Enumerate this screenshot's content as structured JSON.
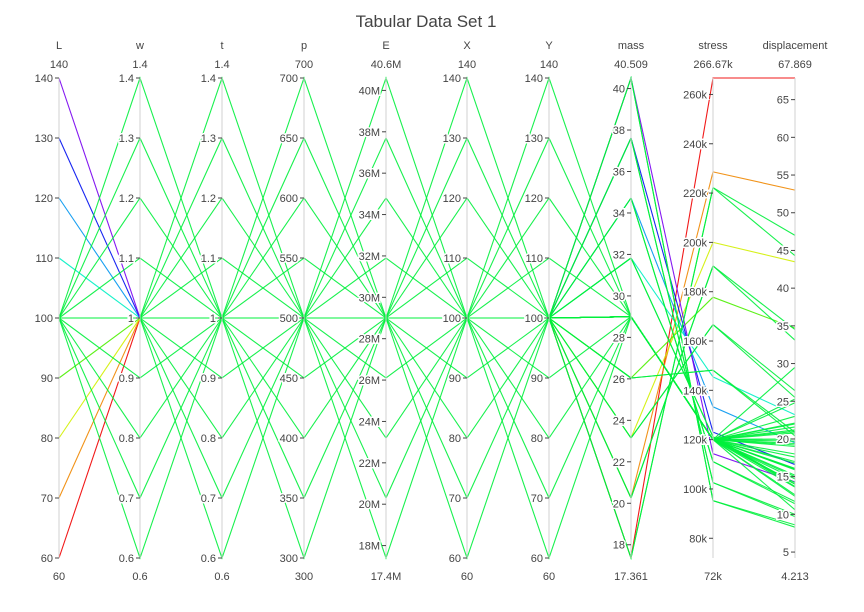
{
  "chart_data": {
    "type": "parallel_coordinates",
    "title": "Tabular Data Set 1",
    "colorscale": "rainbow",
    "colors": {
      "axis_line": "#d0d0d0",
      "text": "#444444",
      "background": "#ffffff"
    },
    "color_encoding": "L",
    "color_range": [
      60,
      140
    ],
    "axes": [
      {
        "id": "L",
        "label": "L",
        "top_label": "140",
        "bottom_label": "60",
        "range": [
          60,
          140
        ],
        "ticks": [
          60,
          70,
          80,
          90,
          100,
          110,
          120,
          130,
          140
        ],
        "tick_labels": [
          "60",
          "70",
          "80",
          "90",
          "100",
          "110",
          "120",
          "130",
          "140"
        ]
      },
      {
        "id": "w",
        "label": "w",
        "top_label": "1.4",
        "bottom_label": "0.6",
        "range": [
          0.6,
          1.4
        ],
        "ticks": [
          0.6,
          0.7,
          0.8,
          0.9,
          1.0,
          1.1,
          1.2,
          1.3,
          1.4
        ],
        "tick_labels": [
          "0.6",
          "0.7",
          "0.8",
          "0.9",
          "1",
          "1.1",
          "1.2",
          "1.3",
          "1.4"
        ]
      },
      {
        "id": "t",
        "label": "t",
        "top_label": "1.4",
        "bottom_label": "0.6",
        "range": [
          0.6,
          1.4
        ],
        "ticks": [
          0.6,
          0.7,
          0.8,
          0.9,
          1.0,
          1.1,
          1.2,
          1.3,
          1.4
        ],
        "tick_labels": [
          "0.6",
          "0.7",
          "0.8",
          "0.9",
          "1",
          "1.1",
          "1.2",
          "1.3",
          "1.4"
        ]
      },
      {
        "id": "p",
        "label": "p",
        "top_label": "700",
        "bottom_label": "300",
        "range": [
          300,
          700
        ],
        "ticks": [
          300,
          350,
          400,
          450,
          500,
          550,
          600,
          650,
          700
        ],
        "tick_labels": [
          "300",
          "350",
          "400",
          "450",
          "500",
          "550",
          "600",
          "650",
          "700"
        ]
      },
      {
        "id": "E",
        "label": "E",
        "top_label": "40.6M",
        "bottom_label": "17.4M",
        "range": [
          17.4,
          40.6
        ],
        "ticks": [
          18,
          20,
          22,
          24,
          26,
          28,
          30,
          32,
          34,
          36,
          38,
          40
        ],
        "tick_labels": [
          "18M",
          "20M",
          "22M",
          "24M",
          "26M",
          "28M",
          "30M",
          "32M",
          "34M",
          "36M",
          "38M",
          "40M"
        ]
      },
      {
        "id": "X",
        "label": "X",
        "top_label": "140",
        "bottom_label": "60",
        "range": [
          60,
          140
        ],
        "ticks": [
          60,
          70,
          80,
          90,
          100,
          110,
          120,
          130,
          140
        ],
        "tick_labels": [
          "60",
          "70",
          "80",
          "90",
          "100",
          "110",
          "120",
          "130",
          "140"
        ]
      },
      {
        "id": "Y",
        "label": "Y",
        "top_label": "140",
        "bottom_label": "60",
        "range": [
          60,
          140
        ],
        "ticks": [
          60,
          70,
          80,
          90,
          100,
          110,
          120,
          130,
          140
        ],
        "tick_labels": [
          "60",
          "70",
          "80",
          "90",
          "100",
          "110",
          "120",
          "130",
          "140"
        ]
      },
      {
        "id": "mass",
        "label": "mass",
        "top_label": "40.509",
        "bottom_label": "17.361",
        "range": [
          17.361,
          40.509
        ],
        "ticks": [
          18,
          20,
          22,
          24,
          26,
          28,
          30,
          32,
          34,
          36,
          38,
          40
        ],
        "tick_labels": [
          "18",
          "20",
          "22",
          "24",
          "26",
          "28",
          "30",
          "32",
          "34",
          "36",
          "38",
          "40"
        ]
      },
      {
        "id": "stress",
        "label": "stress",
        "top_label": "266.67k",
        "bottom_label": "72k",
        "range": [
          72,
          266.67
        ],
        "ticks": [
          80,
          100,
          120,
          140,
          160,
          180,
          200,
          220,
          240,
          260
        ],
        "tick_labels": [
          "80k",
          "100k",
          "120k",
          "140k",
          "160k",
          "180k",
          "200k",
          "220k",
          "240k",
          "260k"
        ]
      },
      {
        "id": "displacement",
        "label": "displacement",
        "top_label": "67.869",
        "bottom_label": "4.213",
        "range": [
          4.213,
          67.869
        ],
        "ticks": [
          5,
          10,
          15,
          20,
          25,
          30,
          35,
          40,
          45,
          50,
          55,
          60,
          65
        ],
        "tick_labels": [
          "5",
          "10",
          "15",
          "20",
          "25",
          "30",
          "35",
          "40",
          "45",
          "50",
          "55",
          "60",
          "65"
        ]
      }
    ],
    "lines": [
      {
        "L": 60,
        "w": 1.0,
        "t": 1.0,
        "p": 500,
        "E": 29,
        "X": 100,
        "Y": 100,
        "mass": 17.361,
        "stress": 266.67,
        "displacement": 67.869
      },
      {
        "L": 70,
        "w": 1.0,
        "t": 1.0,
        "p": 500,
        "E": 29,
        "X": 100,
        "Y": 100,
        "mass": 20.255,
        "stress": 228.57,
        "displacement": 53.0
      },
      {
        "L": 80,
        "w": 1.0,
        "t": 1.0,
        "p": 500,
        "E": 29,
        "X": 100,
        "Y": 100,
        "mass": 23.148,
        "stress": 200.0,
        "displacement": 43.5
      },
      {
        "L": 90,
        "w": 1.0,
        "t": 1.0,
        "p": 500,
        "E": 29,
        "X": 100,
        "Y": 100,
        "mass": 26.042,
        "stress": 177.78,
        "displacement": 34.7
      },
      {
        "L": 110,
        "w": 1.0,
        "t": 1.0,
        "p": 500,
        "E": 29,
        "X": 100,
        "Y": 100,
        "mass": 31.829,
        "stress": 145.45,
        "displacement": 23.2
      },
      {
        "L": 120,
        "w": 1.0,
        "t": 1.0,
        "p": 500,
        "E": 29,
        "X": 100,
        "Y": 100,
        "mass": 34.722,
        "stress": 133.33,
        "displacement": 19.5
      },
      {
        "L": 130,
        "w": 1.0,
        "t": 1.0,
        "p": 500,
        "E": 29,
        "X": 100,
        "Y": 100,
        "mass": 37.616,
        "stress": 123.08,
        "displacement": 16.6
      },
      {
        "L": 140,
        "w": 1.0,
        "t": 1.0,
        "p": 500,
        "E": 29,
        "X": 100,
        "Y": 100,
        "mass": 40.509,
        "stress": 114.29,
        "displacement": 14.3
      },
      {
        "L": 100,
        "w": 0.6,
        "t": 1.0,
        "p": 500,
        "E": 29,
        "X": 100,
        "Y": 100,
        "mass": 17.361,
        "stress": 222.22,
        "displacement": 47.0
      },
      {
        "L": 100,
        "w": 0.7,
        "t": 1.0,
        "p": 500,
        "E": 29,
        "X": 100,
        "Y": 100,
        "mass": 20.255,
        "stress": 190.48,
        "displacement": 34.5
      },
      {
        "L": 100,
        "w": 0.8,
        "t": 1.0,
        "p": 500,
        "E": 29,
        "X": 100,
        "Y": 100,
        "mass": 23.148,
        "stress": 166.67,
        "displacement": 26.4
      },
      {
        "L": 100,
        "w": 0.9,
        "t": 1.0,
        "p": 500,
        "E": 29,
        "X": 100,
        "Y": 100,
        "mass": 26.042,
        "stress": 148.15,
        "displacement": 20.9
      },
      {
        "L": 100,
        "w": 1.1,
        "t": 1.0,
        "p": 500,
        "E": 29,
        "X": 100,
        "Y": 100,
        "mass": 31.829,
        "stress": 121.21,
        "displacement": 14.0
      },
      {
        "L": 100,
        "w": 1.2,
        "t": 1.0,
        "p": 500,
        "E": 29,
        "X": 100,
        "Y": 100,
        "mass": 34.722,
        "stress": 111.11,
        "displacement": 11.7
      },
      {
        "L": 100,
        "w": 1.3,
        "t": 1.0,
        "p": 500,
        "E": 29,
        "X": 100,
        "Y": 100,
        "mass": 37.616,
        "stress": 102.56,
        "displacement": 10.0
      },
      {
        "L": 100,
        "w": 1.4,
        "t": 1.0,
        "p": 500,
        "E": 29,
        "X": 100,
        "Y": 100,
        "mass": 40.509,
        "stress": 95.24,
        "displacement": 8.6
      },
      {
        "L": 100,
        "w": 1.0,
        "t": 0.6,
        "p": 500,
        "E": 29,
        "X": 100,
        "Y": 100,
        "mass": 17.361,
        "stress": 222.22,
        "displacement": 44.3
      },
      {
        "L": 100,
        "w": 1.0,
        "t": 0.7,
        "p": 500,
        "E": 29,
        "X": 100,
        "Y": 100,
        "mass": 20.255,
        "stress": 190.48,
        "displacement": 33.1
      },
      {
        "L": 100,
        "w": 1.0,
        "t": 0.8,
        "p": 500,
        "E": 29,
        "X": 100,
        "Y": 100,
        "mass": 23.148,
        "stress": 166.67,
        "displacement": 25.5
      },
      {
        "L": 100,
        "w": 1.0,
        "t": 0.9,
        "p": 500,
        "E": 29,
        "X": 100,
        "Y": 100,
        "mass": 26.042,
        "stress": 148.15,
        "displacement": 20.4
      },
      {
        "L": 100,
        "w": 1.0,
        "t": 1.1,
        "p": 500,
        "E": 29,
        "X": 100,
        "Y": 100,
        "mass": 31.829,
        "stress": 121.21,
        "displacement": 13.7
      },
      {
        "L": 100,
        "w": 1.0,
        "t": 1.2,
        "p": 500,
        "E": 29,
        "X": 100,
        "Y": 100,
        "mass": 34.722,
        "stress": 111.11,
        "displacement": 11.4
      },
      {
        "L": 100,
        "w": 1.0,
        "t": 1.3,
        "p": 500,
        "E": 29,
        "X": 100,
        "Y": 100,
        "mass": 37.616,
        "stress": 102.56,
        "displacement": 9.7
      },
      {
        "L": 100,
        "w": 1.0,
        "t": 1.4,
        "p": 500,
        "E": 29,
        "X": 100,
        "Y": 100,
        "mass": 40.509,
        "stress": 95.24,
        "displacement": 8.3
      },
      {
        "L": 100,
        "w": 1.0,
        "t": 1.0,
        "p": 300,
        "E": 29,
        "X": 100,
        "Y": 100,
        "mass": 29.0,
        "stress": 120.0,
        "displacement": 10.6
      },
      {
        "L": 100,
        "w": 1.0,
        "t": 1.0,
        "p": 350,
        "E": 29,
        "X": 100,
        "Y": 100,
        "mass": 29.0,
        "stress": 120.0,
        "displacement": 12.4
      },
      {
        "L": 100,
        "w": 1.0,
        "t": 1.0,
        "p": 400,
        "E": 29,
        "X": 100,
        "Y": 100,
        "mass": 29.0,
        "stress": 120.0,
        "displacement": 14.2
      },
      {
        "L": 100,
        "w": 1.0,
        "t": 1.0,
        "p": 450,
        "E": 29,
        "X": 100,
        "Y": 100,
        "mass": 29.0,
        "stress": 120.0,
        "displacement": 15.9
      },
      {
        "L": 100,
        "w": 1.0,
        "t": 1.0,
        "p": 550,
        "E": 29,
        "X": 100,
        "Y": 100,
        "mass": 29.0,
        "stress": 120.0,
        "displacement": 19.4
      },
      {
        "L": 100,
        "w": 1.0,
        "t": 1.0,
        "p": 600,
        "E": 29,
        "X": 100,
        "Y": 100,
        "mass": 29.0,
        "stress": 120.0,
        "displacement": 21.2
      },
      {
        "L": 100,
        "w": 1.0,
        "t": 1.0,
        "p": 650,
        "E": 29,
        "X": 100,
        "Y": 100,
        "mass": 29.0,
        "stress": 120.0,
        "displacement": 23.0
      },
      {
        "L": 100,
        "w": 1.0,
        "t": 1.0,
        "p": 700,
        "E": 29,
        "X": 100,
        "Y": 100,
        "mass": 29.0,
        "stress": 120.0,
        "displacement": 24.8
      },
      {
        "L": 100,
        "w": 1.0,
        "t": 1.0,
        "p": 500,
        "E": 17.4,
        "X": 100,
        "Y": 100,
        "mass": 29.0,
        "stress": 120.0,
        "displacement": 29.5
      },
      {
        "L": 100,
        "w": 1.0,
        "t": 1.0,
        "p": 500,
        "E": 20.3,
        "X": 100,
        "Y": 100,
        "mass": 29.0,
        "stress": 120.0,
        "displacement": 25.3
      },
      {
        "L": 100,
        "w": 1.0,
        "t": 1.0,
        "p": 500,
        "E": 23.2,
        "X": 100,
        "Y": 100,
        "mass": 29.0,
        "stress": 120.0,
        "displacement": 22.1
      },
      {
        "L": 100,
        "w": 1.0,
        "t": 1.0,
        "p": 500,
        "E": 26.1,
        "X": 100,
        "Y": 100,
        "mass": 29.0,
        "stress": 120.0,
        "displacement": 19.7
      },
      {
        "L": 100,
        "w": 1.0,
        "t": 1.0,
        "p": 500,
        "E": 31.9,
        "X": 100,
        "Y": 100,
        "mass": 29.0,
        "stress": 120.0,
        "displacement": 16.1
      },
      {
        "L": 100,
        "w": 1.0,
        "t": 1.0,
        "p": 500,
        "E": 34.8,
        "X": 100,
        "Y": 100,
        "mass": 29.0,
        "stress": 120.0,
        "displacement": 14.7
      },
      {
        "L": 100,
        "w": 1.0,
        "t": 1.0,
        "p": 500,
        "E": 37.7,
        "X": 100,
        "Y": 100,
        "mass": 29.0,
        "stress": 120.0,
        "displacement": 13.6
      },
      {
        "L": 100,
        "w": 1.0,
        "t": 1.0,
        "p": 500,
        "E": 40.6,
        "X": 100,
        "Y": 100,
        "mass": 29.0,
        "stress": 120.0,
        "displacement": 12.6
      },
      {
        "L": 100,
        "w": 1.0,
        "t": 1.0,
        "p": 500,
        "E": 29,
        "X": 60,
        "Y": 100,
        "mass": 29.0,
        "stress": 120.0,
        "displacement": 14.0
      },
      {
        "L": 100,
        "w": 1.0,
        "t": 1.0,
        "p": 500,
        "E": 29,
        "X": 70,
        "Y": 100,
        "mass": 29.0,
        "stress": 120.0,
        "displacement": 15.0
      },
      {
        "L": 100,
        "w": 1.0,
        "t": 1.0,
        "p": 500,
        "E": 29,
        "X": 80,
        "Y": 100,
        "mass": 29.0,
        "stress": 120.0,
        "displacement": 16.0
      },
      {
        "L": 100,
        "w": 1.0,
        "t": 1.0,
        "p": 500,
        "E": 29,
        "X": 90,
        "Y": 100,
        "mass": 29.0,
        "stress": 120.0,
        "displacement": 17.0
      },
      {
        "L": 100,
        "w": 1.0,
        "t": 1.0,
        "p": 500,
        "E": 29,
        "X": 110,
        "Y": 100,
        "mass": 29.0,
        "stress": 120.0,
        "displacement": 19.0
      },
      {
        "L": 100,
        "w": 1.0,
        "t": 1.0,
        "p": 500,
        "E": 29,
        "X": 120,
        "Y": 100,
        "mass": 29.0,
        "stress": 120.0,
        "displacement": 20.0
      },
      {
        "L": 100,
        "w": 1.0,
        "t": 1.0,
        "p": 500,
        "E": 29,
        "X": 130,
        "Y": 100,
        "mass": 29.0,
        "stress": 120.0,
        "displacement": 21.0
      },
      {
        "L": 100,
        "w": 1.0,
        "t": 1.0,
        "p": 500,
        "E": 29,
        "X": 140,
        "Y": 100,
        "mass": 29.0,
        "stress": 120.0,
        "displacement": 22.0
      },
      {
        "L": 100,
        "w": 1.0,
        "t": 1.0,
        "p": 500,
        "E": 29,
        "X": 100,
        "Y": 60,
        "mass": 29.0,
        "stress": 120.0,
        "displacement": 15.2
      },
      {
        "L": 100,
        "w": 1.0,
        "t": 1.0,
        "p": 500,
        "E": 29,
        "X": 100,
        "Y": 70,
        "mass": 29.0,
        "stress": 120.0,
        "displacement": 16.0
      },
      {
        "L": 100,
        "w": 1.0,
        "t": 1.0,
        "p": 500,
        "E": 29,
        "X": 100,
        "Y": 80,
        "mass": 29.0,
        "stress": 120.0,
        "displacement": 16.8
      },
      {
        "L": 100,
        "w": 1.0,
        "t": 1.0,
        "p": 500,
        "E": 29,
        "X": 100,
        "Y": 90,
        "mass": 29.0,
        "stress": 120.0,
        "displacement": 17.6
      },
      {
        "L": 100,
        "w": 1.0,
        "t": 1.0,
        "p": 500,
        "E": 29,
        "X": 100,
        "Y": 110,
        "mass": 29.0,
        "stress": 120.0,
        "displacement": 19.2
      },
      {
        "L": 100,
        "w": 1.0,
        "t": 1.0,
        "p": 500,
        "E": 29,
        "X": 100,
        "Y": 120,
        "mass": 29.0,
        "stress": 120.0,
        "displacement": 20.0
      },
      {
        "L": 100,
        "w": 1.0,
        "t": 1.0,
        "p": 500,
        "E": 29,
        "X": 100,
        "Y": 130,
        "mass": 29.0,
        "stress": 120.0,
        "displacement": 20.8
      },
      {
        "L": 100,
        "w": 1.0,
        "t": 1.0,
        "p": 500,
        "E": 29,
        "X": 100,
        "Y": 140,
        "mass": 29.0,
        "stress": 120.0,
        "displacement": 21.6
      },
      {
        "L": 100,
        "w": 1.0,
        "t": 1.0,
        "p": 500,
        "E": 29,
        "X": 100,
        "Y": 100,
        "mass": 29.0,
        "stress": 120.0,
        "displacement": 18.0
      }
    ]
  }
}
